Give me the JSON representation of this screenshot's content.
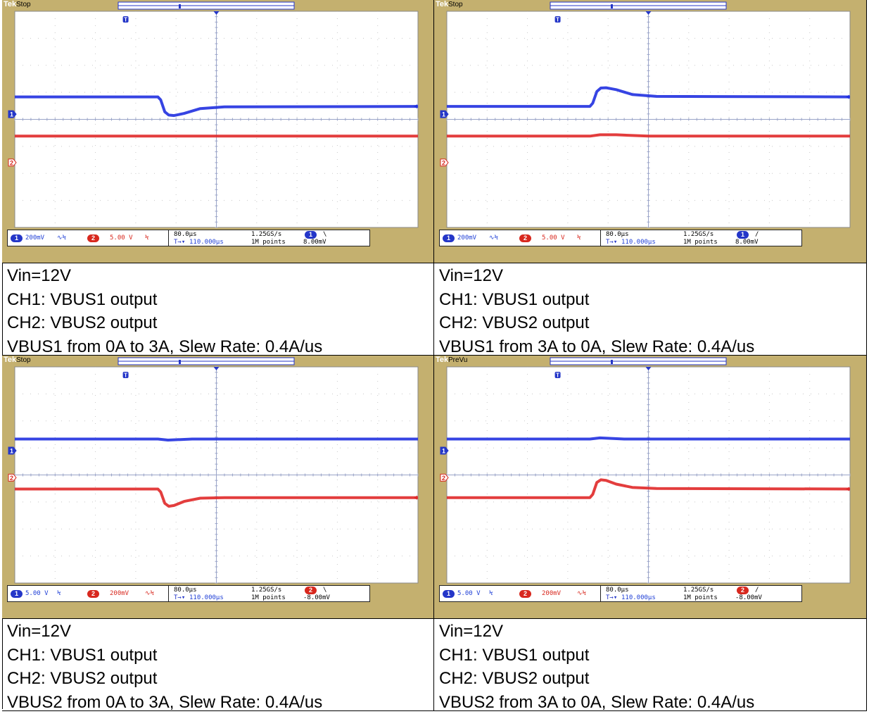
{
  "panels": [
    {
      "id": "p1",
      "scope": {
        "state": "Stop",
        "logo": "Tek",
        "ch1_scale": "200mV",
        "ch1_coupling": "∿Ϟ",
        "ch2_scale": "5.00 V",
        "ch2_coupling": "Ϟ",
        "timebase": "80.0µs",
        "delay": "110.000µs",
        "sample_rate": "1.25GS/s",
        "record": "1M points",
        "trigger_channel": "1",
        "trigger_slope": "\\",
        "trigger_level": "8.00mV"
      },
      "caption": [
        "Vin=12V",
        "CH1: VBUS1 output",
        "CH2: VBUS2 output",
        "VBUS1 from 0A to 3A, Slew Rate: 0.4A/us"
      ]
    },
    {
      "id": "p2",
      "scope": {
        "state": "Stop",
        "logo": "Tek",
        "ch1_scale": "200mV",
        "ch1_coupling": "∿Ϟ",
        "ch2_scale": "5.00 V",
        "ch2_coupling": "Ϟ",
        "timebase": "80.0µs",
        "delay": "110.000µs",
        "sample_rate": "1.25GS/s",
        "record": "1M points",
        "trigger_channel": "1",
        "trigger_slope": "/",
        "trigger_level": "8.00mV"
      },
      "caption": [
        "Vin=12V",
        "CH1: VBUS1 output",
        "CH2: VBUS2 output",
        "VBUS1 from 3A to 0A, Slew Rate: 0.4A/us"
      ]
    },
    {
      "id": "p3",
      "scope": {
        "state": "Stop",
        "logo": "Tek",
        "ch1_scale": "5.00 V",
        "ch1_coupling": "Ϟ",
        "ch2_scale": "200mV",
        "ch2_coupling": "∿Ϟ",
        "timebase": "80.0µs",
        "delay": "110.000µs",
        "sample_rate": "1.25GS/s",
        "record": "1M points",
        "trigger_channel": "2",
        "trigger_slope": "\\",
        "trigger_level": "-8.00mV"
      },
      "caption": [
        "Vin=12V",
        "CH1: VBUS1 output",
        "CH2: VBUS2 output",
        "VBUS2 from 0A to 3A, Slew Rate: 0.4A/us"
      ]
    },
    {
      "id": "p4",
      "scope": {
        "state": "PreVu",
        "logo": "Tek",
        "ch1_scale": "5.00 V",
        "ch1_coupling": "Ϟ",
        "ch2_scale": "200mV",
        "ch2_coupling": "∿Ϟ",
        "timebase": "80.0µs",
        "delay": "110.000µs",
        "sample_rate": "1.25GS/s",
        "record": "1M points",
        "trigger_channel": "2",
        "trigger_slope": "/",
        "trigger_level": "-8.00mV"
      },
      "caption": [
        "Vin=12V",
        "CH1: VBUS1 output",
        "CH2: VBUS2 output",
        "VBUS2 from 3A to 0A, Slew Rate: 0.4A/us"
      ]
    }
  ],
  "chart_data": [
    {
      "type": "line",
      "x_unit": "div",
      "y_unit": "div",
      "xlim": [
        0,
        10
      ],
      "ylim": [
        -4,
        4
      ],
      "grid": true,
      "series": [
        {
          "channel": "CH1",
          "color": "#2030e0",
          "x": [
            0,
            3.55,
            3.62,
            3.72,
            3.82,
            3.95,
            4.2,
            4.6,
            5.2,
            10
          ],
          "y": [
            0.83,
            0.83,
            0.72,
            0.28,
            0.16,
            0.14,
            0.22,
            0.4,
            0.46,
            0.48
          ]
        },
        {
          "channel": "CH2",
          "color": "#e02828",
          "x": [
            0,
            10
          ],
          "y": [
            -0.62,
            -0.62
          ]
        }
      ]
    },
    {
      "type": "line",
      "x_unit": "div",
      "y_unit": "div",
      "xlim": [
        0,
        10
      ],
      "ylim": [
        -4,
        4
      ],
      "grid": true,
      "series": [
        {
          "channel": "CH1",
          "color": "#2030e0",
          "x": [
            0,
            3.55,
            3.62,
            3.72,
            3.82,
            3.95,
            4.2,
            4.6,
            5.2,
            10
          ],
          "y": [
            0.48,
            0.48,
            0.6,
            1.03,
            1.16,
            1.17,
            1.1,
            0.92,
            0.85,
            0.83
          ]
        },
        {
          "channel": "CH2",
          "color": "#e02828",
          "x": [
            0,
            3.55,
            3.8,
            4.2,
            5.0,
            10
          ],
          "y": [
            -0.62,
            -0.62,
            -0.57,
            -0.57,
            -0.62,
            -0.62
          ]
        }
      ]
    },
    {
      "type": "line",
      "x_unit": "div",
      "y_unit": "div",
      "xlim": [
        0,
        10
      ],
      "ylim": [
        -4,
        4
      ],
      "grid": true,
      "series": [
        {
          "channel": "CH1",
          "color": "#2030e0",
          "x": [
            0,
            3.55,
            3.8,
            4.4,
            10
          ],
          "y": [
            1.33,
            1.33,
            1.29,
            1.33,
            1.33
          ]
        },
        {
          "channel": "CH2",
          "color": "#e02828",
          "x": [
            0,
            3.55,
            3.62,
            3.72,
            3.82,
            3.95,
            4.2,
            4.6,
            5.2,
            10
          ],
          "y": [
            -0.52,
            -0.52,
            -0.63,
            -1.05,
            -1.16,
            -1.13,
            -0.98,
            -0.86,
            -0.84,
            -0.84
          ]
        }
      ]
    },
    {
      "type": "line",
      "x_unit": "div",
      "y_unit": "div",
      "xlim": [
        0,
        10
      ],
      "ylim": [
        -4,
        4
      ],
      "grid": true,
      "series": [
        {
          "channel": "CH1",
          "color": "#2030e0",
          "x": [
            0,
            3.55,
            3.8,
            4.4,
            10
          ],
          "y": [
            1.33,
            1.33,
            1.37,
            1.33,
            1.33
          ]
        },
        {
          "channel": "CH2",
          "color": "#e02828",
          "x": [
            0,
            3.55,
            3.62,
            3.72,
            3.82,
            3.95,
            4.2,
            4.6,
            5.2,
            10
          ],
          "y": [
            -0.84,
            -0.84,
            -0.72,
            -0.28,
            -0.18,
            -0.2,
            -0.34,
            -0.46,
            -0.5,
            -0.52
          ]
        }
      ]
    }
  ]
}
